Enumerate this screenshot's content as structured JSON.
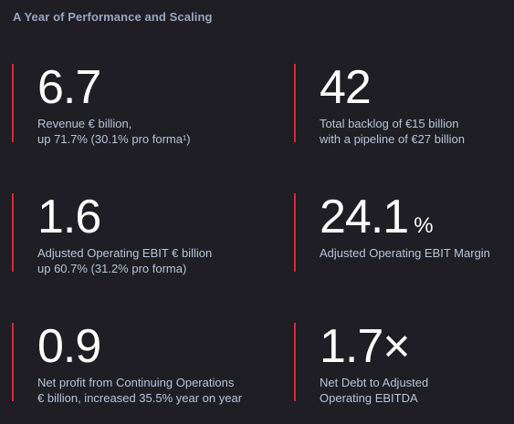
{
  "title": "A Year of Performance and Scaling",
  "colors": {
    "background": "#1e1e24",
    "accent_bar": "#d6263a",
    "value_text": "#ffffff",
    "label_text": "#b9c4d8"
  },
  "kpis": [
    {
      "value": "6.7",
      "unit": "",
      "lines": [
        "Revenue € billion,",
        "up 71.7% (30.1% pro forma¹)"
      ]
    },
    {
      "value": "42",
      "unit": "",
      "lines": [
        "Total backlog of €15 billion",
        "with a pipeline of €27 billion"
      ]
    },
    {
      "value": "1.6",
      "unit": "",
      "lines": [
        "Adjusted Operating EBIT € billion",
        "up 60.7% (31.2% pro forma)"
      ]
    },
    {
      "value": "24.1",
      "unit": "%",
      "lines": [
        "Adjusted Operating EBIT Margin"
      ]
    },
    {
      "value": "0.9",
      "unit": "",
      "lines": [
        "Net profit from Continuing Operations",
        "€ billion, increased 35.5% year on year"
      ]
    },
    {
      "value": "1.7×",
      "unit": "",
      "lines": [
        "Net Debt to Adjusted",
        "Operating EBITDA"
      ]
    }
  ]
}
